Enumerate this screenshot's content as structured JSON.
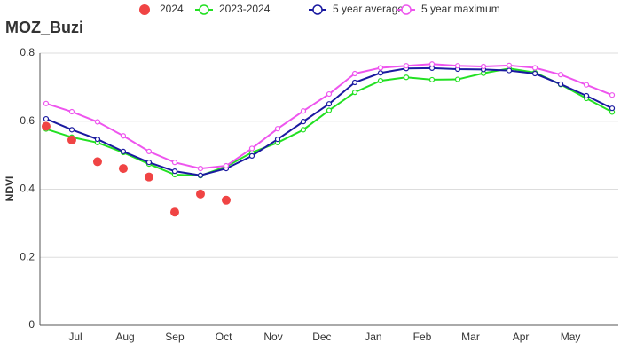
{
  "chart_data": {
    "type": "line",
    "title": "MOZ_Buzi",
    "y_label": "NDVI",
    "ylim": [
      0,
      0.8
    ],
    "yticks": [
      0,
      0.2,
      0.4,
      0.6,
      0.8
    ],
    "xlim": [
      -0.24,
      22.24
    ],
    "xticks": [
      {
        "value": 1.14,
        "label": "Jul"
      },
      {
        "value": 3.07,
        "label": "Aug"
      },
      {
        "value": 5.0,
        "label": "Sep"
      },
      {
        "value": 6.9,
        "label": "Oct"
      },
      {
        "value": 8.83,
        "label": "Nov"
      },
      {
        "value": 10.72,
        "label": "Dec"
      },
      {
        "value": 12.72,
        "label": "Jan"
      },
      {
        "value": 14.62,
        "label": "Feb"
      },
      {
        "value": 16.5,
        "label": "Mar"
      },
      {
        "value": 18.45,
        "label": "Apr"
      },
      {
        "value": 20.38,
        "label": "May"
      }
    ],
    "x": [
      0,
      1,
      2,
      3,
      4,
      5,
      6,
      7,
      8,
      9,
      10,
      11,
      12,
      13,
      14,
      15,
      16,
      17,
      18,
      19,
      20,
      21,
      22
    ],
    "grid": true,
    "legend": "top",
    "series": [
      {
        "name": "2024",
        "color": "#f04444",
        "style": "dots",
        "values": [
          0.585,
          0.545,
          0.481,
          0.461,
          0.436,
          0.333,
          0.386,
          0.368,
          null,
          null,
          null,
          null,
          null,
          null,
          null,
          null,
          null,
          null,
          null,
          null,
          null,
          null,
          null
        ]
      },
      {
        "name": "2023-2024",
        "color": "#22e022",
        "style": "line",
        "values": [
          0.577,
          0.553,
          0.537,
          0.508,
          0.474,
          0.443,
          0.44,
          0.467,
          0.508,
          0.537,
          0.575,
          0.632,
          0.685,
          0.719,
          0.729,
          0.722,
          0.723,
          0.741,
          0.755,
          0.743,
          0.708,
          0.667,
          0.627
        ]
      },
      {
        "name": "5 year average",
        "color": "#1a1aa0",
        "style": "line",
        "values": [
          0.607,
          0.575,
          0.547,
          0.511,
          0.479,
          0.453,
          0.441,
          0.461,
          0.498,
          0.547,
          0.599,
          0.651,
          0.714,
          0.742,
          0.755,
          0.756,
          0.753,
          0.752,
          0.749,
          0.74,
          0.709,
          0.675,
          0.638
        ]
      },
      {
        "name": "5 year maximum",
        "color": "#ee55ee",
        "style": "line",
        "values": [
          0.652,
          0.628,
          0.598,
          0.557,
          0.511,
          0.479,
          0.461,
          0.469,
          0.52,
          0.578,
          0.63,
          0.68,
          0.74,
          0.757,
          0.763,
          0.768,
          0.763,
          0.761,
          0.764,
          0.757,
          0.737,
          0.707,
          0.677
        ]
      }
    ]
  }
}
